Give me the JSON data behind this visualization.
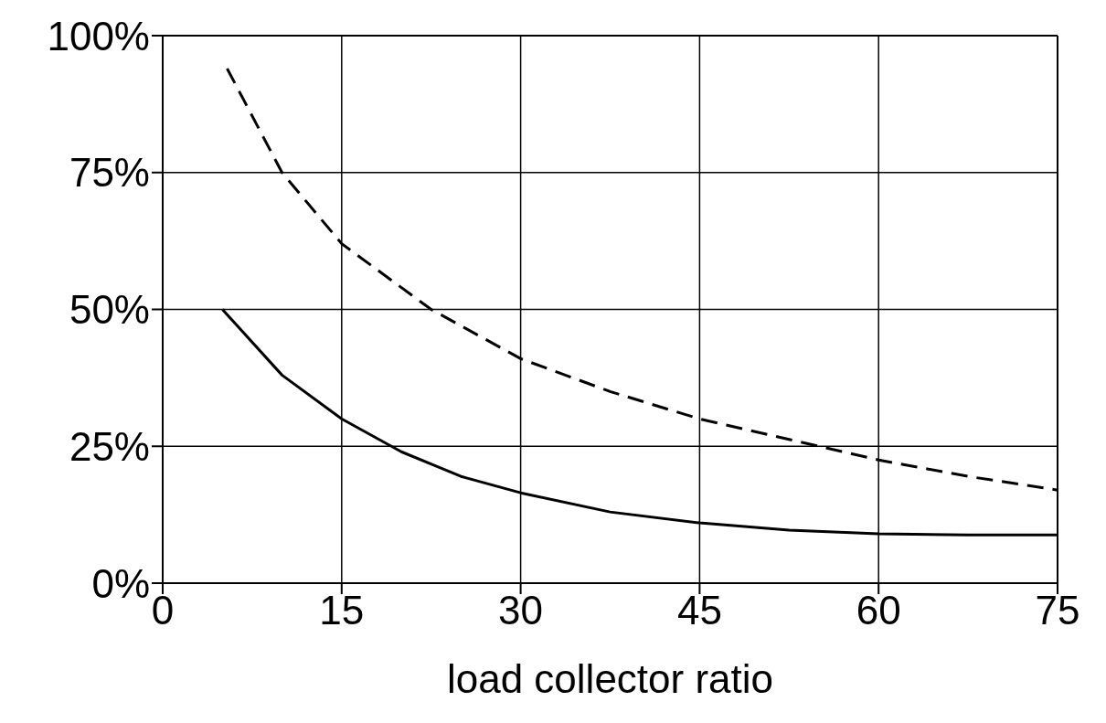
{
  "chart_data": {
    "type": "line",
    "xlabel": "load collector ratio",
    "xlim": [
      0,
      75
    ],
    "xticks": [
      0,
      15,
      30,
      45,
      60,
      75
    ],
    "ylim": [
      0,
      100
    ],
    "yticks": [
      {
        "value": 0,
        "label": "0%"
      },
      {
        "value": 25,
        "label": "25%"
      },
      {
        "value": 50,
        "label": "50%"
      },
      {
        "value": 75,
        "label": "75%"
      },
      {
        "value": 100,
        "label": "100%"
      }
    ],
    "grid": true,
    "marker": "none",
    "series": [
      {
        "color": "#000000",
        "line_style": "dashed",
        "x": [
          5.4,
          10,
          15,
          22.5,
          30,
          37.5,
          45,
          55,
          60,
          67.5,
          75
        ],
        "values": [
          94,
          75,
          62,
          50,
          41,
          35,
          30,
          25,
          22.5,
          19.5,
          17
        ]
      },
      {
        "color": "#000000",
        "line_style": "solid",
        "x": [
          5,
          10,
          15,
          20,
          25,
          30,
          37.5,
          45,
          52.5,
          60,
          67.5,
          75
        ],
        "values": [
          50,
          38,
          30,
          24,
          19.5,
          16.5,
          13,
          11,
          9.7,
          9,
          8.8,
          8.8
        ]
      }
    ]
  }
}
